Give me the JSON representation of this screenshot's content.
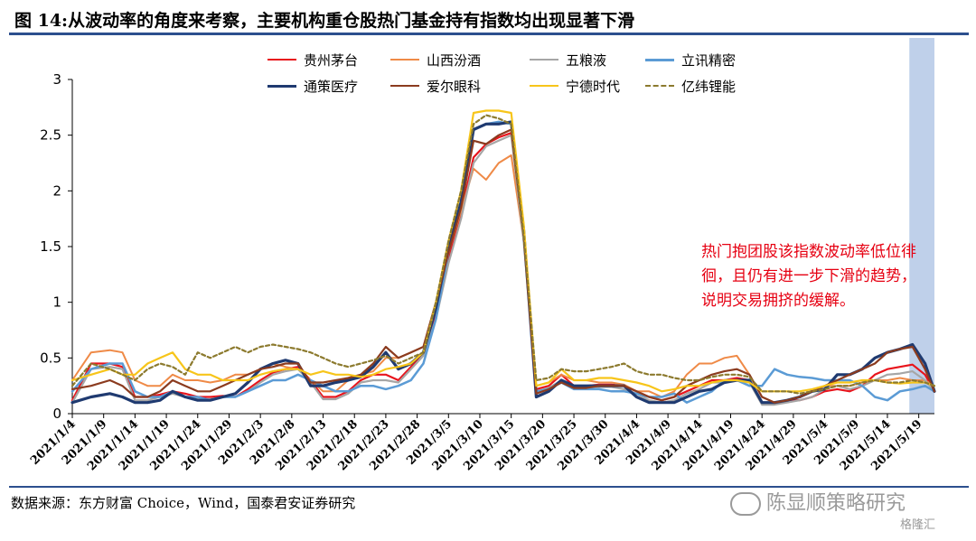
{
  "title": "图 14:从波动率的角度来考察，主要机构重仓股热门基金持有指数均出现显著下滑",
  "note": "热门抱团股该指数波动率低位徘徊，且仍有进一步下滑的趋势，说明交易拥挤的缓解。",
  "source": "数据来源：东方财富 Choice，Wind，国泰君安证券研究",
  "watermark": "陈显顺策略研究",
  "badge": "格隆汇",
  "colors": {
    "title_rule": "#2c4f8e",
    "note": "#e60012",
    "highlight": "#bfd0ea"
  },
  "chart_data": {
    "type": "line",
    "ylim": [
      0,
      3
    ],
    "yticks": [
      "0",
      "0.5",
      "1",
      "1.5",
      "2",
      "2.5",
      "3"
    ],
    "xticks": [
      "2021/1/4",
      "2021/1/9",
      "2021/1/14",
      "2021/1/19",
      "2021/1/24",
      "2021/1/29",
      "2021/2/3",
      "2021/2/8",
      "2021/2/13",
      "2021/2/18",
      "2021/2/23",
      "2021/2/28",
      "2021/3/5",
      "2021/3/10",
      "2021/3/15",
      "2021/3/20",
      "2021/3/25",
      "2021/3/30",
      "2021/4/4",
      "2021/4/9",
      "2021/4/14",
      "2021/4/19",
      "2021/4/24",
      "2021/4/29",
      "2021/5/4",
      "2021/5/9",
      "2021/5/14",
      "2021/5/19"
    ],
    "x": [
      0,
      3,
      6,
      8,
      10,
      12,
      14,
      16,
      18,
      20,
      22,
      24,
      26,
      28,
      30,
      32,
      34,
      36,
      38,
      40,
      42,
      44,
      46,
      48,
      50,
      52,
      54,
      56,
      58,
      60,
      62,
      64,
      66,
      68,
      70,
      72,
      74,
      76,
      78,
      80,
      82,
      84,
      86,
      88,
      90,
      92,
      94,
      96,
      98,
      100,
      102,
      104,
      106,
      108,
      110,
      112,
      114,
      116,
      118,
      120,
      122,
      124,
      126,
      128,
      130,
      132,
      134,
      136,
      137.5
    ],
    "x_unit": "days since 2021/1/4",
    "highlight_range": [
      133.5,
      137.5
    ],
    "series": [
      {
        "name": "贵州茅台",
        "color": "#e8141c",
        "width": 2.2,
        "dash": "",
        "values": [
          0.12,
          0.45,
          0.45,
          0.42,
          0.15,
          0.15,
          0.17,
          0.2,
          0.18,
          0.15,
          0.15,
          0.16,
          0.15,
          0.22,
          0.3,
          0.37,
          0.4,
          0.42,
          0.3,
          0.15,
          0.15,
          0.2,
          0.3,
          0.35,
          0.35,
          0.3,
          0.42,
          0.55,
          0.9,
          1.4,
          1.8,
          2.3,
          2.42,
          2.48,
          2.52,
          1.6,
          0.22,
          0.25,
          0.35,
          0.25,
          0.25,
          0.26,
          0.26,
          0.25,
          0.2,
          0.15,
          0.12,
          0.15,
          0.2,
          0.25,
          0.3,
          0.3,
          0.32,
          0.3,
          0.1,
          0.1,
          0.12,
          0.12,
          0.15,
          0.2,
          0.22,
          0.2,
          0.25,
          0.35,
          0.4,
          0.42,
          0.44,
          0.35,
          0.2
        ]
      },
      {
        "name": "山西汾酒",
        "color": "#ef8a47",
        "width": 2.0,
        "dash": "",
        "values": [
          0.3,
          0.55,
          0.57,
          0.55,
          0.3,
          0.25,
          0.25,
          0.35,
          0.3,
          0.3,
          0.28,
          0.3,
          0.35,
          0.35,
          0.4,
          0.45,
          0.42,
          0.4,
          0.3,
          0.2,
          0.2,
          0.3,
          0.35,
          0.38,
          0.5,
          0.5,
          0.55,
          0.6,
          1.0,
          1.45,
          1.82,
          2.2,
          2.1,
          2.25,
          2.32,
          1.55,
          0.25,
          0.28,
          0.35,
          0.3,
          0.3,
          0.28,
          0.28,
          0.26,
          0.2,
          0.2,
          0.15,
          0.2,
          0.35,
          0.45,
          0.45,
          0.5,
          0.52,
          0.35,
          0.15,
          0.1,
          0.12,
          0.15,
          0.2,
          0.25,
          0.25,
          0.25,
          0.28,
          0.3,
          0.3,
          0.32,
          0.3,
          0.3,
          0.25
        ]
      },
      {
        "name": "五粮液",
        "color": "#a6a6a6",
        "width": 2.2,
        "dash": "",
        "values": [
          0.1,
          0.4,
          0.42,
          0.4,
          0.12,
          0.12,
          0.15,
          0.18,
          0.15,
          0.13,
          0.13,
          0.15,
          0.15,
          0.2,
          0.28,
          0.35,
          0.38,
          0.4,
          0.28,
          0.13,
          0.13,
          0.18,
          0.28,
          0.3,
          0.3,
          0.28,
          0.4,
          0.52,
          0.85,
          1.35,
          1.75,
          2.25,
          2.4,
          2.45,
          2.5,
          1.55,
          0.2,
          0.23,
          0.3,
          0.23,
          0.23,
          0.24,
          0.24,
          0.22,
          0.18,
          0.12,
          0.1,
          0.12,
          0.18,
          0.22,
          0.28,
          0.28,
          0.3,
          0.28,
          0.08,
          0.08,
          0.1,
          0.12,
          0.15,
          0.22,
          0.25,
          0.22,
          0.25,
          0.3,
          0.35,
          0.36,
          0.38,
          0.3,
          0.2
        ]
      },
      {
        "name": "立讯精密",
        "color": "#5b9bd5",
        "width": 2.5,
        "dash": "",
        "values": [
          0.2,
          0.4,
          0.45,
          0.45,
          0.2,
          0.15,
          0.15,
          0.2,
          0.15,
          0.15,
          0.12,
          0.15,
          0.15,
          0.2,
          0.25,
          0.3,
          0.3,
          0.35,
          0.3,
          0.25,
          0.2,
          0.2,
          0.25,
          0.25,
          0.22,
          0.25,
          0.3,
          0.45,
          0.85,
          1.45,
          1.9,
          2.55,
          2.6,
          2.62,
          2.6,
          1.6,
          0.2,
          0.22,
          0.28,
          0.22,
          0.22,
          0.22,
          0.2,
          0.2,
          0.18,
          0.15,
          0.15,
          0.18,
          0.1,
          0.15,
          0.2,
          0.3,
          0.3,
          0.25,
          0.25,
          0.4,
          0.35,
          0.33,
          0.32,
          0.3,
          0.3,
          0.3,
          0.25,
          0.15,
          0.12,
          0.2,
          0.22,
          0.25,
          0.2
        ]
      },
      {
        "name": "通策医疗",
        "color": "#1f3a70",
        "width": 3.2,
        "dash": "",
        "values": [
          0.1,
          0.15,
          0.18,
          0.15,
          0.1,
          0.1,
          0.12,
          0.2,
          0.15,
          0.12,
          0.12,
          0.15,
          0.18,
          0.28,
          0.4,
          0.45,
          0.48,
          0.45,
          0.25,
          0.25,
          0.28,
          0.3,
          0.33,
          0.42,
          0.55,
          0.4,
          0.45,
          0.55,
          0.95,
          1.5,
          1.9,
          2.55,
          2.6,
          2.6,
          2.62,
          1.65,
          0.15,
          0.2,
          0.3,
          0.25,
          0.25,
          0.25,
          0.25,
          0.25,
          0.15,
          0.1,
          0.1,
          0.1,
          0.15,
          0.2,
          0.22,
          0.28,
          0.3,
          0.3,
          0.1,
          0.1,
          0.12,
          0.15,
          0.2,
          0.22,
          0.35,
          0.35,
          0.4,
          0.5,
          0.55,
          0.58,
          0.62,
          0.45,
          0.2
        ]
      },
      {
        "name": "爱尔眼科",
        "color": "#8b3b1f",
        "width": 2.2,
        "dash": "",
        "values": [
          0.22,
          0.25,
          0.3,
          0.25,
          0.15,
          0.15,
          0.2,
          0.3,
          0.25,
          0.2,
          0.2,
          0.25,
          0.3,
          0.35,
          0.4,
          0.42,
          0.45,
          0.45,
          0.28,
          0.28,
          0.3,
          0.32,
          0.35,
          0.45,
          0.6,
          0.5,
          0.55,
          0.6,
          1.0,
          1.45,
          1.85,
          2.45,
          2.42,
          2.5,
          2.55,
          1.6,
          0.18,
          0.22,
          0.28,
          0.23,
          0.23,
          0.25,
          0.25,
          0.25,
          0.2,
          0.15,
          0.12,
          0.15,
          0.25,
          0.3,
          0.35,
          0.38,
          0.4,
          0.35,
          0.15,
          0.1,
          0.12,
          0.15,
          0.2,
          0.25,
          0.3,
          0.35,
          0.4,
          0.45,
          0.55,
          0.58,
          0.6,
          0.4,
          0.2
        ]
      },
      {
        "name": "宁德时代",
        "color": "#f7c51a",
        "width": 2.2,
        "dash": "",
        "values": [
          0.3,
          0.35,
          0.4,
          0.35,
          0.35,
          0.45,
          0.5,
          0.55,
          0.4,
          0.35,
          0.35,
          0.3,
          0.3,
          0.3,
          0.35,
          0.38,
          0.4,
          0.4,
          0.35,
          0.38,
          0.35,
          0.35,
          0.33,
          0.35,
          0.4,
          0.42,
          0.45,
          0.55,
          1.0,
          1.55,
          2.0,
          2.7,
          2.72,
          2.72,
          2.7,
          1.7,
          0.25,
          0.28,
          0.4,
          0.3,
          0.3,
          0.32,
          0.32,
          0.3,
          0.28,
          0.25,
          0.2,
          0.22,
          0.25,
          0.25,
          0.28,
          0.3,
          0.3,
          0.28,
          0.2,
          0.2,
          0.2,
          0.2,
          0.22,
          0.25,
          0.28,
          0.28,
          0.3,
          0.3,
          0.28,
          0.27,
          0.28,
          0.28,
          0.25
        ]
      },
      {
        "name": "亿纬锂能",
        "color": "#8c7a2e",
        "width": 2.2,
        "dash": "4,3",
        "values": [
          0.25,
          0.45,
          0.4,
          0.35,
          0.3,
          0.4,
          0.45,
          0.42,
          0.35,
          0.55,
          0.5,
          0.55,
          0.6,
          0.55,
          0.6,
          0.62,
          0.6,
          0.58,
          0.55,
          0.5,
          0.45,
          0.42,
          0.45,
          0.48,
          0.52,
          0.45,
          0.5,
          0.55,
          1.0,
          1.55,
          2.0,
          2.6,
          2.68,
          2.65,
          2.6,
          1.6,
          0.3,
          0.32,
          0.4,
          0.38,
          0.38,
          0.4,
          0.42,
          0.45,
          0.38,
          0.35,
          0.35,
          0.32,
          0.3,
          0.3,
          0.33,
          0.35,
          0.35,
          0.33,
          0.2,
          0.2,
          0.2,
          0.18,
          0.2,
          0.22,
          0.25,
          0.25,
          0.28,
          0.3,
          0.28,
          0.28,
          0.3,
          0.28,
          0.25
        ]
      }
    ]
  }
}
